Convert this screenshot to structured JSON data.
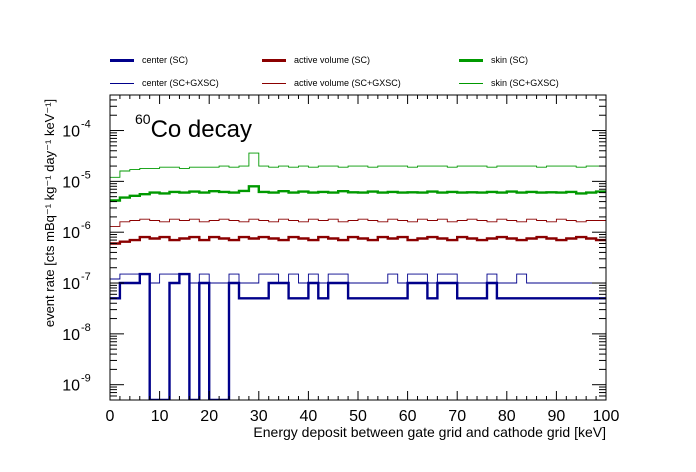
{
  "chart_data": {
    "type": "line",
    "step": true,
    "annotation": {
      "superscript": "60",
      "text": "Co decay"
    },
    "xlabel": "Energy deposit between gate grid and cathode grid [keV]",
    "ylabel": "event rate [cts mBq⁻¹ kg⁻¹ day⁻¹ keV⁻¹]",
    "xlim": [
      0,
      100
    ],
    "ylim": [
      5e-10,
      0.0005
    ],
    "yscale": "log",
    "x_ticks": [
      "0",
      "10",
      "20",
      "30",
      "40",
      "50",
      "60",
      "70",
      "80",
      "90",
      "100"
    ],
    "y_ticks": [
      {
        "value": 1e-09,
        "base": "10",
        "exp": "-9"
      },
      {
        "value": 1e-08,
        "base": "10",
        "exp": "-8"
      },
      {
        "value": 1e-07,
        "base": "10",
        "exp": "-7"
      },
      {
        "value": 1e-06,
        "base": "10",
        "exp": "-6"
      },
      {
        "value": 1e-05,
        "base": "10",
        "exp": "-5"
      },
      {
        "value": 0.0001,
        "base": "10",
        "exp": "-4"
      }
    ],
    "legend_position": "top",
    "bin_width": 2,
    "series": [
      {
        "name": "center (SC)",
        "color": "#00008b",
        "width": 2.4,
        "values": [
          5e-08,
          1e-07,
          1e-07,
          1.5e-07,
          0,
          0,
          1e-07,
          1.5e-07,
          0,
          1e-07,
          0,
          0,
          1e-07,
          5e-08,
          5e-08,
          5e-08,
          1e-07,
          1e-07,
          5e-08,
          5e-08,
          1e-07,
          5e-08,
          1e-07,
          1e-07,
          5e-08,
          5e-08,
          5e-08,
          5e-08,
          5e-08,
          5e-08,
          1e-07,
          1e-07,
          5e-08,
          1e-07,
          1e-07,
          5e-08,
          5e-08,
          5e-08,
          1e-07,
          5e-08,
          5e-08,
          5e-08,
          5e-08,
          5e-08,
          5e-08,
          5e-08,
          5e-08,
          5e-08,
          5e-08,
          5e-08
        ]
      },
      {
        "name": "center (SC+GXSC)",
        "color": "#00008b",
        "width": 0.9,
        "values": [
          1.2e-07,
          1.5e-07,
          1.5e-07,
          1.5e-07,
          1e-07,
          1.5e-07,
          1.5e-07,
          1.5e-07,
          1e-07,
          1.5e-07,
          1e-07,
          1e-07,
          1.5e-07,
          1e-07,
          1e-07,
          1.5e-07,
          1.5e-07,
          1e-07,
          1.5e-07,
          1e-07,
          1.5e-07,
          1e-07,
          1.5e-07,
          1.5e-07,
          1e-07,
          1e-07,
          1e-07,
          1e-07,
          1.5e-07,
          1e-07,
          1.5e-07,
          1.5e-07,
          1e-07,
          1.5e-07,
          1.5e-07,
          1e-07,
          1e-07,
          1e-07,
          1.5e-07,
          1e-07,
          1e-07,
          1.5e-07,
          1e-07,
          1e-07,
          1e-07,
          1e-07,
          1e-07,
          1e-07,
          1e-07,
          1e-07
        ]
      },
      {
        "name": "active volume (SC)",
        "color": "#8b0000",
        "width": 2.4,
        "values": [
          6e-07,
          6.5e-07,
          7e-07,
          8e-07,
          7.5e-07,
          8e-07,
          7e-07,
          7.5e-07,
          8e-07,
          7e-07,
          8e-07,
          7.5e-07,
          7e-07,
          8e-07,
          7.5e-07,
          8e-07,
          7.5e-07,
          7e-07,
          8e-07,
          7.5e-07,
          7e-07,
          8e-07,
          7.5e-07,
          7e-07,
          8e-07,
          7.5e-07,
          7e-07,
          8e-07,
          7.5e-07,
          8e-07,
          7e-07,
          7.5e-07,
          8e-07,
          7.5e-07,
          7e-07,
          8e-07,
          7.5e-07,
          7e-07,
          7.5e-07,
          8e-07,
          7.5e-07,
          7e-07,
          7.5e-07,
          8e-07,
          7.5e-07,
          7e-07,
          7.5e-07,
          8e-07,
          7.5e-07,
          7e-07
        ]
      },
      {
        "name": "active volume (SC+GXSC)",
        "color": "#8b0000",
        "width": 0.9,
        "values": [
          1.3e-06,
          1.6e-06,
          1.7e-06,
          1.8e-06,
          1.7e-06,
          1.6e-06,
          1.8e-06,
          1.7e-06,
          1.8e-06,
          1.6e-06,
          1.7e-06,
          1.8e-06,
          1.7e-06,
          1.6e-06,
          1.8e-06,
          1.7e-06,
          1.6e-06,
          1.8e-06,
          1.7e-06,
          1.6e-06,
          1.8e-06,
          1.7e-06,
          1.8e-06,
          1.6e-06,
          1.7e-06,
          1.8e-06,
          1.7e-06,
          1.6e-06,
          1.8e-06,
          1.7e-06,
          1.6e-06,
          1.8e-06,
          1.7e-06,
          1.8e-06,
          1.6e-06,
          1.7e-06,
          1.8e-06,
          1.7e-06,
          1.6e-06,
          1.8e-06,
          1.7e-06,
          1.6e-06,
          1.8e-06,
          1.7e-06,
          1.6e-06,
          1.8e-06,
          1.7e-06,
          1.6e-06,
          1.7e-06,
          1.7e-06
        ]
      },
      {
        "name": "skin (SC)",
        "color": "#009900",
        "width": 2.4,
        "values": [
          4.2e-06,
          4.8e-06,
          5.2e-06,
          5.6e-06,
          6e-06,
          5.8e-06,
          6.2e-06,
          6e-06,
          6.3e-06,
          6e-06,
          6.4e-06,
          6.2e-06,
          6e-06,
          6.5e-06,
          8e-06,
          6.2e-06,
          6e-06,
          6.4e-06,
          6e-06,
          6.3e-06,
          6e-06,
          6.2e-06,
          6e-06,
          6.4e-06,
          6.1e-06,
          6e-06,
          6.3e-06,
          6e-06,
          6.2e-06,
          6e-06,
          6.1e-06,
          6e-06,
          6.3e-06,
          6e-06,
          6.2e-06,
          6e-06,
          6.1e-06,
          6e-06,
          6.2e-06,
          6e-06,
          6.3e-06,
          6e-06,
          6.2e-06,
          6e-06,
          6.1e-06,
          6e-06,
          6.2e-06,
          5.8e-06,
          6e-06,
          6.3e-06
        ]
      },
      {
        "name": "skin (SC+GXSC)",
        "color": "#009900",
        "width": 0.9,
        "values": [
          1.2e-05,
          1.6e-05,
          1.7e-05,
          1.8e-05,
          1.8e-05,
          1.9e-05,
          1.9e-05,
          1.8e-05,
          1.9e-05,
          1.9e-05,
          1.9e-05,
          2e-05,
          1.9e-05,
          2e-05,
          3.6e-05,
          2e-05,
          1.9e-05,
          2e-05,
          1.9e-05,
          2e-05,
          1.9e-05,
          2e-05,
          2e-05,
          1.9e-05,
          2e-05,
          2e-05,
          1.9e-05,
          2e-05,
          2e-05,
          2e-05,
          1.9e-05,
          2e-05,
          2e-05,
          2e-05,
          1.9e-05,
          2e-05,
          2e-05,
          2e-05,
          1.9e-05,
          2e-05,
          2e-05,
          2e-05,
          2e-05,
          1.9e-05,
          2e-05,
          2e-05,
          2e-05,
          1.9e-05,
          2e-05,
          2e-05
        ]
      }
    ]
  }
}
